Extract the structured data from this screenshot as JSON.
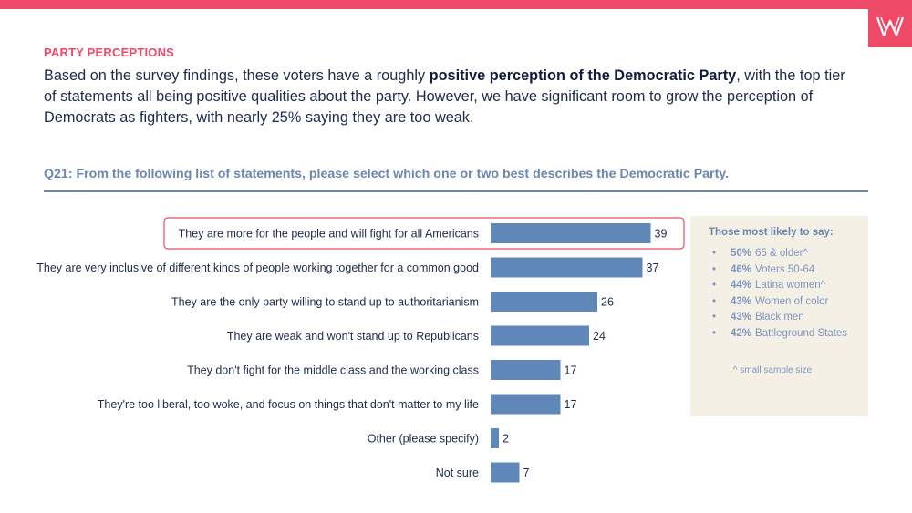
{
  "header": {
    "section_label": "PARTY PERCEPTIONS",
    "intro_part1": "Based on the survey findings, these voters have a roughly ",
    "intro_bold": "positive perception of the Democratic Party",
    "intro_part2": ", with the top tier of statements all being positive qualities about the party. However, we have significant room to grow the perception of Democrats as fighters, with nearly 25% saying they are too weak.",
    "question": "Q21: From the following list of statements, please select which one or two best describes the Democratic Party."
  },
  "colors": {
    "accent": "#ee4a68",
    "bar": "#5f87b8",
    "heading": "#6d86b0",
    "panel": "#f5f0e6"
  },
  "chart_data": {
    "type": "bar",
    "orientation": "horizontal",
    "categories": [
      "They are more for the people and will fight for all Americans",
      "They are very inclusive of different kinds of people working together for a common good",
      "They are the only party willing to stand up to authoritarianism",
      "They are weak and won't stand up to Republicans",
      "They don't fight for the middle class and the working class",
      "They're too liberal, too woke, and focus on things that don't matter to my life",
      "Other (please specify)",
      "Not sure"
    ],
    "values": [
      39,
      37,
      26,
      24,
      17,
      17,
      2,
      7
    ],
    "highlighted_index": 0,
    "xlim": [
      0,
      40
    ],
    "grid": false
  },
  "side_panel": {
    "title": "Those most likely to say:",
    "items": [
      {
        "pct": "50%",
        "label": "65 & older^"
      },
      {
        "pct": "46%",
        "label": "Voters 50-64"
      },
      {
        "pct": "44%",
        "label": "Latina women^"
      },
      {
        "pct": "43%",
        "label": "Women of color"
      },
      {
        "pct": "43%",
        "label": "Black men"
      },
      {
        "pct": "42%",
        "label": "Battleground States"
      }
    ],
    "bullet": "•",
    "note": "^ small sample size"
  }
}
